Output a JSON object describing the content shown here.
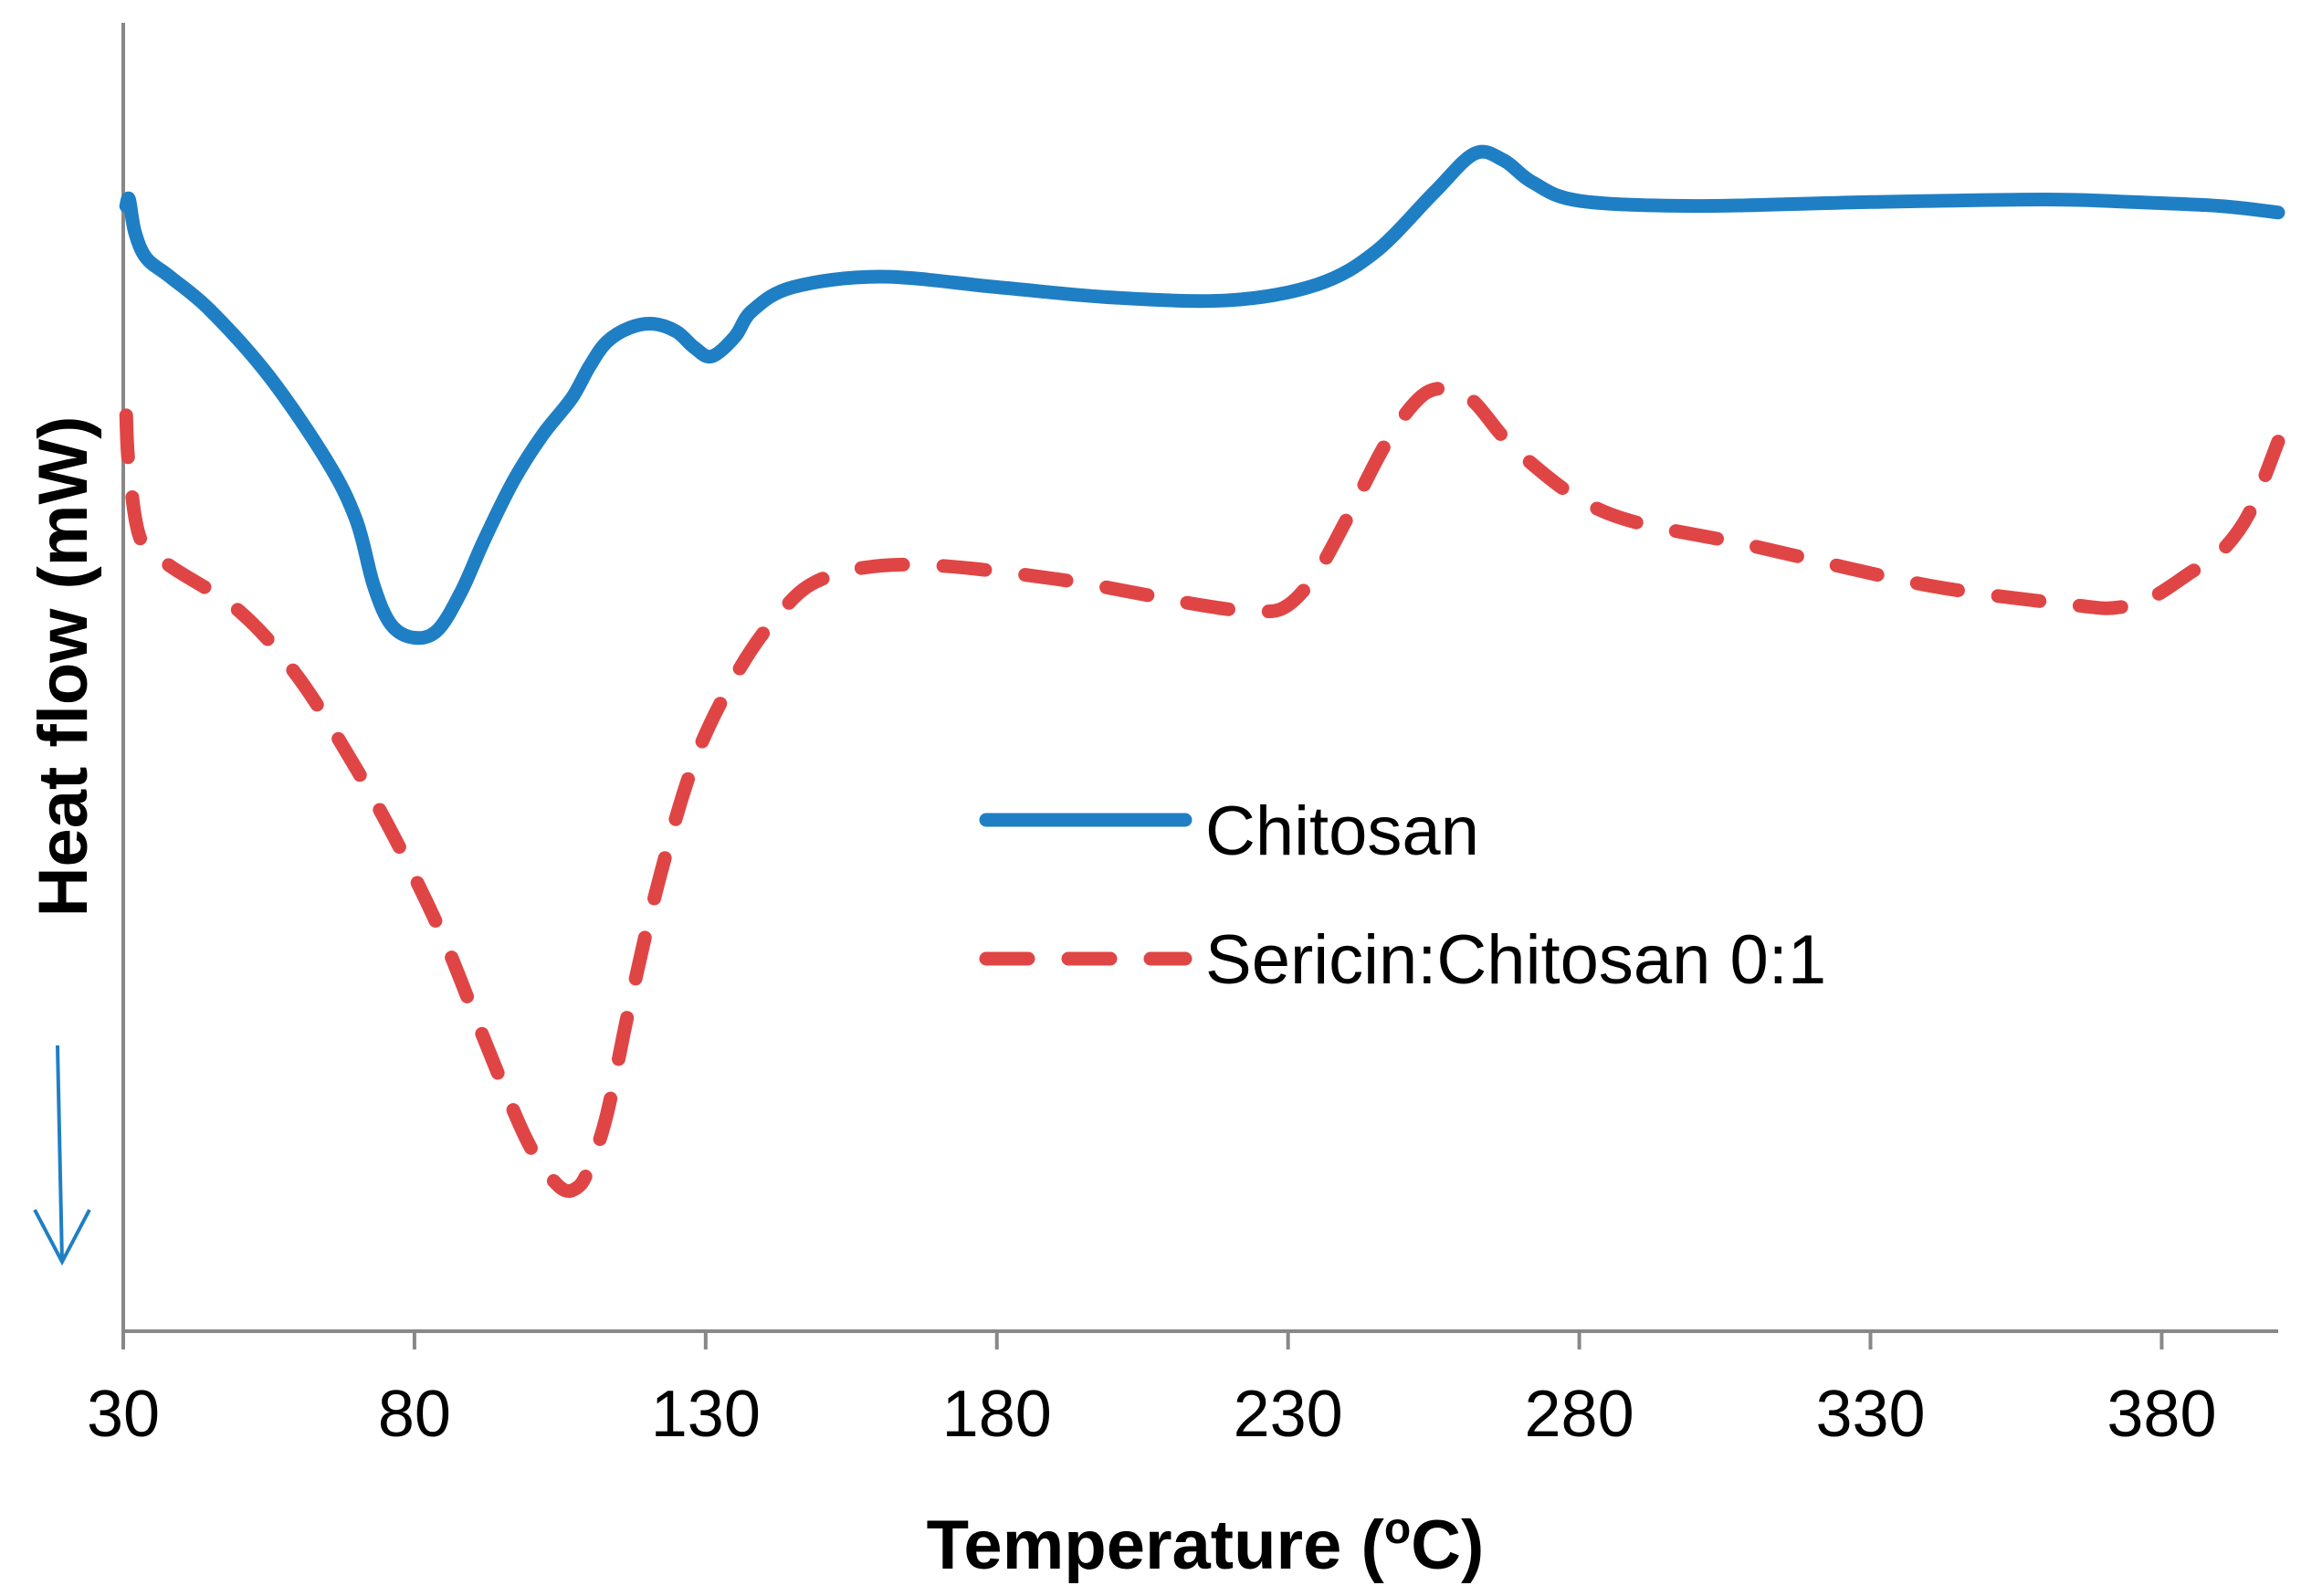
{
  "chart_data": {
    "type": "line",
    "title": "",
    "xlabel": "Temperature (°C)",
    "xlabel_main": "Temperature (",
    "xlabel_sup": "o",
    "xlabel_tail": "C)",
    "ylabel": "Heat flow (mW)",
    "xlim": [
      30,
      400
    ],
    "ylim": [
      0,
      100
    ],
    "x_ticks": [
      30,
      80,
      130,
      180,
      230,
      280,
      330,
      380
    ],
    "y_ticks_shown": false,
    "grid": false,
    "legend_position": "center-right",
    "direction_indicator": "down-arrow",
    "series": [
      {
        "name": "Chitosan",
        "style": "solid",
        "color": "#1f7fc4",
        "x": [
          30.5,
          31,
          32,
          34,
          38,
          45,
          55,
          65,
          70,
          73,
          76,
          80,
          84,
          88,
          92,
          97,
          102,
          107,
          110,
          113,
          117,
          121,
          125,
          128,
          131,
          135,
          138,
          145,
          160,
          180,
          200,
          220,
          235,
          245,
          255,
          262,
          267,
          272,
          280,
          300,
          330,
          360,
          375,
          390,
          400
        ],
        "y": [
          86.0,
          86.5,
          84.0,
          82.0,
          80.6,
          78.0,
          73.0,
          66.5,
          62.0,
          57.0,
          54.0,
          53.0,
          53.6,
          56.5,
          60.5,
          65.0,
          68.5,
          71.3,
          73.7,
          75.6,
          76.7,
          77.0,
          76.4,
          75.2,
          74.5,
          76.0,
          78.0,
          79.8,
          80.6,
          79.8,
          79.0,
          78.8,
          80.0,
          82.5,
          87.0,
          90.0,
          89.5,
          87.8,
          86.4,
          86.0,
          86.3,
          86.5,
          86.3,
          86.0,
          85.5
        ]
      },
      {
        "name": "Sericin:Chitosan 0:1",
        "style": "dashed",
        "color": "#e04545",
        "x": [
          30.5,
          31,
          33,
          38,
          50,
          60,
          70,
          78,
          85,
          90,
          95,
          100,
          105,
          108,
          110,
          113,
          117,
          122,
          128,
          135,
          142,
          150,
          165,
          190,
          215,
          225,
          230,
          235,
          240,
          247,
          253,
          258,
          262,
          270,
          285,
          310,
          340,
          365,
          372,
          378,
          385,
          390,
          395,
          400
        ],
        "y": [
          70.0,
          66.0,
          60.5,
          58.5,
          55.0,
          50.0,
          43.0,
          36.5,
          30.0,
          24.5,
          19.0,
          14.0,
          11.0,
          11.0,
          12.5,
          16.5,
          25.0,
          34.5,
          43.5,
          50.0,
          54.5,
          57.5,
          58.6,
          57.5,
          55.5,
          55.0,
          55.5,
          58.0,
          62.0,
          68.0,
          71.5,
          72.0,
          71.0,
          67.0,
          62.5,
          60.0,
          57.0,
          55.5,
          55.3,
          56.0,
          58.0,
          59.5,
          62.5,
          68.0
        ]
      }
    ]
  }
}
